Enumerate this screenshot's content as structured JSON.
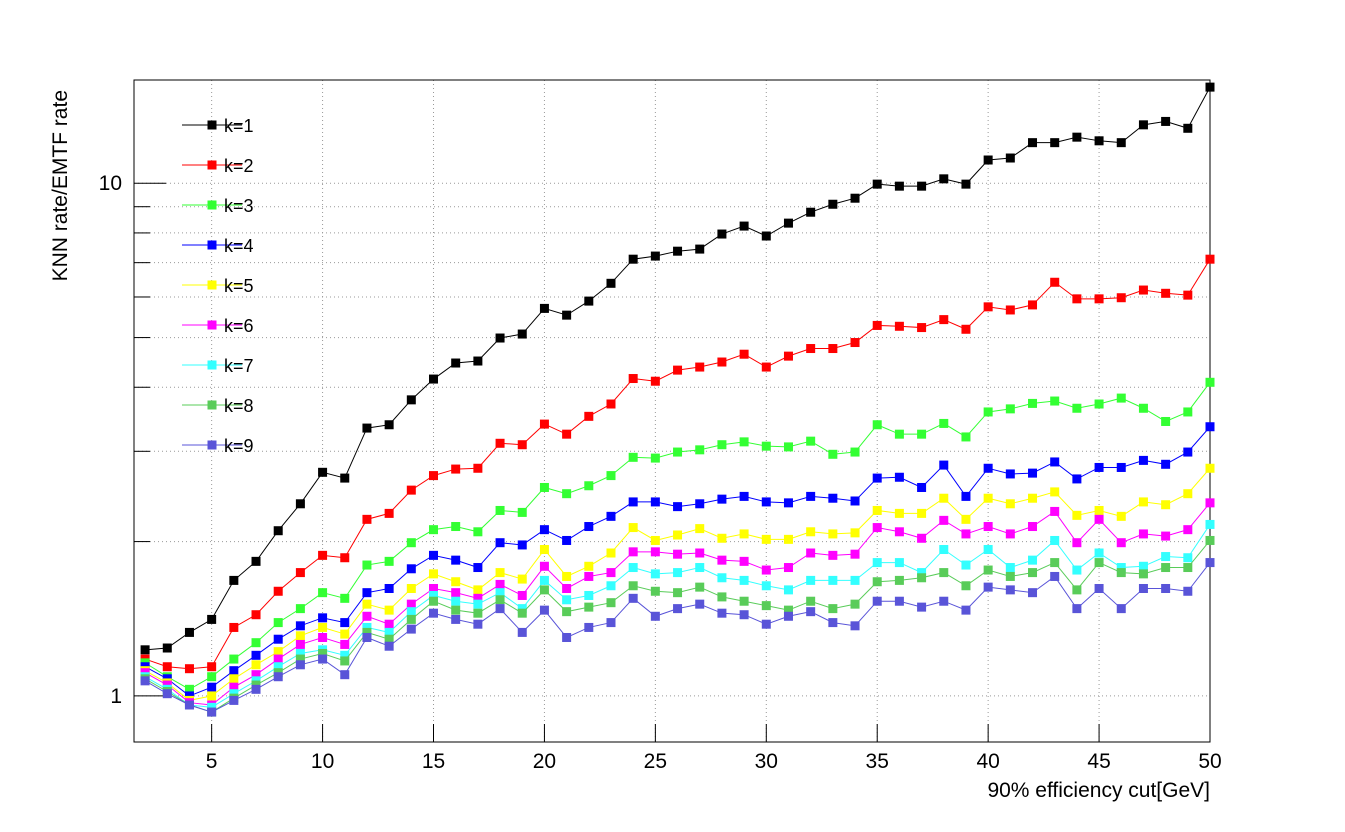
{
  "chart_data": {
    "type": "line",
    "x_label": "90% efficiency cut[GeV]",
    "y_label": "KNN rate/EMTF rate",
    "log_y": true,
    "grid": true,
    "legend_position": "top-left",
    "xlim": [
      1.5,
      50
    ],
    "xticks": [
      5,
      10,
      15,
      20,
      25,
      30,
      35,
      40,
      45,
      50
    ],
    "ylim": [
      0.813,
      15.9
    ],
    "yticks": [
      1,
      10
    ],
    "yminorticks": [
      2,
      3,
      4,
      5,
      6,
      7,
      8,
      9
    ],
    "x": [
      2,
      3,
      4,
      5,
      6,
      7,
      8,
      9,
      10,
      11,
      12,
      13,
      14,
      15,
      16,
      17,
      18,
      19,
      20,
      21,
      22,
      23,
      24,
      25,
      26,
      27,
      28,
      29,
      30,
      31,
      32,
      33,
      34,
      35,
      36,
      37,
      38,
      39,
      40,
      41,
      42,
      43,
      44,
      45,
      46,
      47,
      48,
      49,
      50
    ],
    "series": [
      {
        "name": "k=1",
        "color": "#000000",
        "values": [
          1.23,
          1.24,
          1.33,
          1.41,
          1.68,
          1.83,
          2.1,
          2.37,
          2.73,
          2.66,
          3.33,
          3.38,
          3.78,
          4.15,
          4.46,
          4.5,
          4.99,
          5.08,
          5.7,
          5.53,
          5.89,
          6.38,
          7.11,
          7.21,
          7.37,
          7.44,
          7.96,
          8.25,
          7.89,
          8.36,
          8.78,
          9.1,
          9.35,
          9.96,
          9.87,
          9.87,
          10.2,
          9.96,
          11.1,
          11.2,
          12.0,
          12.0,
          12.3,
          12.1,
          12.0,
          13.0,
          13.2,
          12.8,
          15.4
        ]
      },
      {
        "name": "k=2",
        "color": "#ff0000",
        "values": [
          1.18,
          1.14,
          1.13,
          1.14,
          1.36,
          1.44,
          1.6,
          1.74,
          1.88,
          1.86,
          2.21,
          2.27,
          2.52,
          2.69,
          2.77,
          2.78,
          3.11,
          3.09,
          3.39,
          3.24,
          3.51,
          3.71,
          4.16,
          4.11,
          4.32,
          4.38,
          4.48,
          4.64,
          4.38,
          4.6,
          4.76,
          4.76,
          4.89,
          5.28,
          5.26,
          5.23,
          5.42,
          5.19,
          5.74,
          5.66,
          5.79,
          6.41,
          5.95,
          5.95,
          5.98,
          6.19,
          6.1,
          6.05,
          7.11
        ]
      },
      {
        "name": "k=3",
        "color": "#33ff33",
        "values": [
          1.16,
          1.09,
          1.03,
          1.09,
          1.18,
          1.27,
          1.39,
          1.48,
          1.59,
          1.55,
          1.8,
          1.83,
          1.99,
          2.11,
          2.14,
          2.09,
          2.3,
          2.28,
          2.55,
          2.48,
          2.57,
          2.69,
          2.92,
          2.91,
          2.99,
          3.02,
          3.09,
          3.13,
          3.07,
          3.06,
          3.14,
          2.96,
          2.99,
          3.38,
          3.24,
          3.24,
          3.4,
          3.2,
          3.58,
          3.63,
          3.72,
          3.76,
          3.64,
          3.71,
          3.81,
          3.64,
          3.43,
          3.58,
          4.09
        ]
      },
      {
        "name": "k=4",
        "color": "#0000ff",
        "values": [
          1.14,
          1.08,
          1.0,
          1.04,
          1.12,
          1.2,
          1.29,
          1.37,
          1.42,
          1.39,
          1.59,
          1.62,
          1.77,
          1.88,
          1.84,
          1.78,
          1.99,
          1.97,
          2.11,
          2.01,
          2.14,
          2.24,
          2.39,
          2.39,
          2.34,
          2.37,
          2.42,
          2.45,
          2.39,
          2.38,
          2.45,
          2.43,
          2.4,
          2.66,
          2.67,
          2.55,
          2.82,
          2.45,
          2.78,
          2.71,
          2.72,
          2.86,
          2.65,
          2.79,
          2.79,
          2.88,
          2.83,
          2.99,
          3.35
        ]
      },
      {
        "name": "k=5",
        "color": "#ffff00",
        "values": [
          1.12,
          1.06,
          0.98,
          1.0,
          1.08,
          1.15,
          1.22,
          1.31,
          1.36,
          1.32,
          1.51,
          1.47,
          1.62,
          1.73,
          1.67,
          1.61,
          1.74,
          1.69,
          1.93,
          1.71,
          1.79,
          1.9,
          2.13,
          2.01,
          2.06,
          2.12,
          2.03,
          2.07,
          2.02,
          2.02,
          2.09,
          2.07,
          2.08,
          2.3,
          2.27,
          2.27,
          2.43,
          2.21,
          2.43,
          2.37,
          2.43,
          2.5,
          2.25,
          2.3,
          2.24,
          2.39,
          2.36,
          2.48,
          2.78
        ]
      },
      {
        "name": "k=6",
        "color": "#ff00ff",
        "values": [
          1.11,
          1.05,
          0.97,
          0.96,
          1.04,
          1.1,
          1.18,
          1.26,
          1.3,
          1.26,
          1.43,
          1.38,
          1.51,
          1.62,
          1.59,
          1.55,
          1.65,
          1.57,
          1.79,
          1.62,
          1.71,
          1.74,
          1.91,
          1.91,
          1.89,
          1.9,
          1.84,
          1.83,
          1.76,
          1.78,
          1.9,
          1.88,
          1.89,
          2.13,
          2.09,
          2.03,
          2.2,
          2.07,
          2.14,
          2.07,
          2.14,
          2.29,
          1.99,
          2.21,
          1.99,
          2.07,
          2.05,
          2.11,
          2.38
        ]
      },
      {
        "name": "k=7",
        "color": "#33ffff",
        "values": [
          1.09,
          1.03,
          0.96,
          0.95,
          1.01,
          1.07,
          1.14,
          1.21,
          1.23,
          1.2,
          1.36,
          1.33,
          1.46,
          1.57,
          1.53,
          1.51,
          1.59,
          1.48,
          1.68,
          1.54,
          1.57,
          1.64,
          1.78,
          1.73,
          1.74,
          1.78,
          1.7,
          1.68,
          1.64,
          1.61,
          1.68,
          1.68,
          1.68,
          1.82,
          1.82,
          1.74,
          1.93,
          1.8,
          1.93,
          1.78,
          1.84,
          2.01,
          1.76,
          1.9,
          1.78,
          1.79,
          1.87,
          1.86,
          2.16
        ]
      },
      {
        "name": "k=8",
        "color": "#59cc59",
        "values": [
          1.08,
          1.02,
          0.96,
          0.93,
          0.99,
          1.05,
          1.11,
          1.18,
          1.21,
          1.17,
          1.33,
          1.29,
          1.41,
          1.53,
          1.47,
          1.45,
          1.54,
          1.45,
          1.61,
          1.46,
          1.49,
          1.52,
          1.64,
          1.6,
          1.59,
          1.63,
          1.56,
          1.53,
          1.5,
          1.47,
          1.53,
          1.48,
          1.51,
          1.67,
          1.68,
          1.7,
          1.74,
          1.64,
          1.76,
          1.71,
          1.74,
          1.82,
          1.61,
          1.82,
          1.74,
          1.73,
          1.78,
          1.78,
          2.01
        ]
      },
      {
        "name": "k=9",
        "color": "#5954d8",
        "values": [
          1.07,
          1.01,
          0.96,
          0.93,
          0.98,
          1.03,
          1.09,
          1.15,
          1.18,
          1.1,
          1.3,
          1.25,
          1.35,
          1.45,
          1.41,
          1.38,
          1.48,
          1.33,
          1.47,
          1.3,
          1.36,
          1.39,
          1.55,
          1.43,
          1.48,
          1.51,
          1.45,
          1.44,
          1.38,
          1.43,
          1.46,
          1.39,
          1.37,
          1.53,
          1.53,
          1.49,
          1.53,
          1.47,
          1.63,
          1.61,
          1.59,
          1.71,
          1.48,
          1.62,
          1.48,
          1.62,
          1.62,
          1.6,
          1.82
        ]
      }
    ]
  }
}
